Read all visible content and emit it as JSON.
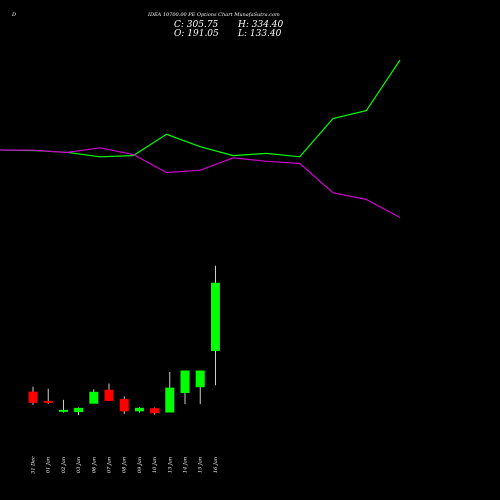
{
  "header": {
    "letter": "D",
    "title": "IDEA 10700.00 PE Options Chart MunafaSutra.com",
    "close": "C: 305.75",
    "high": "H: 334.40",
    "open": "O: 191.05",
    "low": "L: 133.40"
  },
  "chart_data": {
    "type": "candlestick",
    "dates": [
      "31 Dec",
      "01 Jan",
      "02 Jan",
      "03 Jan",
      "06 Jan",
      "07 Jan",
      "08 Jan",
      "09 Jan",
      "10 Jan",
      "13 Jan",
      "14 Jan",
      "15 Jan",
      "16 Jan"
    ],
    "candles": [
      {
        "open": 122.7,
        "high": 131.1,
        "low": 100.4,
        "close": 103.8
      },
      {
        "open": 107.1,
        "high": 127.6,
        "low": 102.3,
        "close": 103.7
      },
      {
        "open": 91.0,
        "high": 108.8,
        "low": 87.5,
        "close": 92.0
      },
      {
        "open": 88.3,
        "high": 96.2,
        "low": 83.1,
        "close": 95.4
      },
      {
        "open": 102.4,
        "high": 126.6,
        "low": 102.4,
        "close": 122.4
      },
      {
        "open": 125.9,
        "high": 136.4,
        "low": 107.1,
        "close": 107.1
      },
      {
        "open": 110.4,
        "high": 114.7,
        "low": 85.4,
        "close": 89.6
      },
      {
        "open": 89.6,
        "high": 96.7,
        "low": 87.5,
        "close": 95.5
      },
      {
        "open": 94.9,
        "high": 95.9,
        "low": 84.2,
        "close": 86.4
      },
      {
        "open": 87.6,
        "high": 155.7,
        "low": 87.6,
        "close": 129.4
      },
      {
        "open": 120.4,
        "high": 155.7,
        "low": 101.7,
        "close": 158.2
      },
      {
        "open": 130.1,
        "high": 155.7,
        "low": 101.7,
        "close": 158.2
      },
      {
        "open": 191.05,
        "high": 334.4,
        "low": 133.4,
        "close": 305.75
      }
    ],
    "series": [
      {
        "color": "#00ff00",
        "values": [
          100.0,
          99.8,
          99.0,
          97.0,
          97.5,
          107.0,
          101.5,
          97.5,
          98.5,
          97.0,
          114.0,
          117.5,
          140.0
        ]
      },
      {
        "color": "#cc00cc",
        "values": [
          100.0,
          99.9,
          98.9,
          101.0,
          98.0,
          90.0,
          91.0,
          96.5,
          95.0,
          94.0,
          81.0,
          78.0,
          70.0
        ]
      }
    ],
    "colors": {
      "up": "#00ff00",
      "down": "#ff0000",
      "wick": "#ffffff",
      "background": "#000000"
    }
  }
}
